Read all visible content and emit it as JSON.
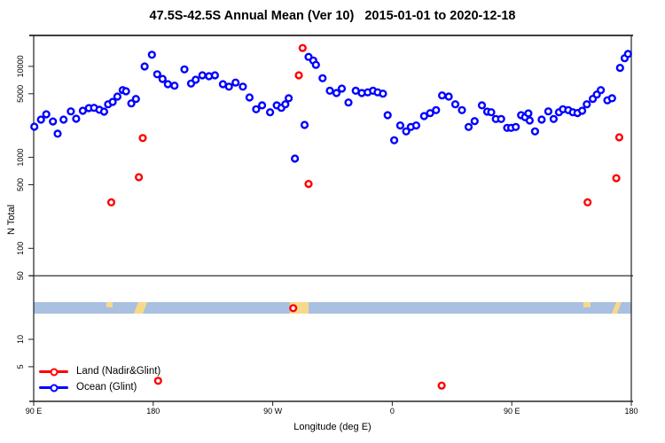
{
  "title": "47.5S-42.5S Annual Mean (Ver 10)   2015-01-01 to 2020-12-18",
  "legend": {
    "items": [
      {
        "label": "Land (Nadir&Glint)",
        "color": "#ff0000"
      },
      {
        "label": "Ocean (Glint)",
        "color": "#0000ff"
      }
    ]
  },
  "chart_data": {
    "type": "scatter",
    "title": "47.5S-42.5S Annual Mean (Ver 10)   2015-01-01 to 2020-12-18",
    "xlabel": "Longitude (deg E)",
    "ylabel": "N Total",
    "x_scale": "linear",
    "y_scale": "log10",
    "xlim": [
      90,
      540
    ],
    "ylim": [
      2,
      22000
    ],
    "grid": false,
    "legend_position": "bottom-left",
    "x_ticks": [
      {
        "value": 90,
        "label": "90 E"
      },
      {
        "value": 180,
        "label": "180"
      },
      {
        "value": 270,
        "label": "90 W"
      },
      {
        "value": 360,
        "label": "0"
      },
      {
        "value": 450,
        "label": "90 E"
      },
      {
        "value": 540,
        "label": "180"
      }
    ],
    "y_ticks": [
      {
        "value": 10000,
        "label": "10000"
      },
      {
        "value": 5000,
        "label": "5000"
      },
      {
        "value": 1000,
        "label": "1000"
      },
      {
        "value": 500,
        "label": "500"
      },
      {
        "value": 100,
        "label": "100"
      },
      {
        "value": 50,
        "label": "50"
      },
      {
        "value": 10,
        "label": "10"
      },
      {
        "value": 5,
        "label": "5"
      }
    ],
    "reference_line_y": 50,
    "series": [
      {
        "name": "Land (Nadir&Glint)",
        "color": "#ff0000",
        "marker": "open-circle",
        "points": [
          [
            148.4,
            320
          ],
          [
            169.2,
            605
          ],
          [
            172.1,
            1630
          ],
          [
            183.7,
            3.5
          ],
          [
            285.4,
            22
          ],
          [
            289.6,
            7970
          ],
          [
            292.5,
            15900
          ],
          [
            297.0,
            510
          ],
          [
            397.2,
            3.1
          ],
          [
            507.1,
            320
          ],
          [
            528.7,
            590
          ],
          [
            530.9,
            1660
          ]
        ]
      },
      {
        "name": "Ocean (Glint)",
        "color": "#0000ff",
        "marker": "open-circle",
        "points": [
          [
            90.5,
            2170
          ],
          [
            95.5,
            2600
          ],
          [
            99.5,
            2970
          ],
          [
            104.5,
            2480
          ],
          [
            108,
            1820
          ],
          [
            112.5,
            2600
          ],
          [
            118,
            3200
          ],
          [
            122,
            2660
          ],
          [
            127,
            3250
          ],
          [
            131.5,
            3480
          ],
          [
            135.5,
            3500
          ],
          [
            139.5,
            3330
          ],
          [
            143,
            3180
          ],
          [
            146,
            3830
          ],
          [
            149.5,
            4070
          ],
          [
            153,
            4660
          ],
          [
            157,
            5480
          ],
          [
            159.5,
            5320
          ],
          [
            163.5,
            3920
          ],
          [
            167,
            4380
          ],
          [
            173.5,
            9980
          ],
          [
            179,
            13400
          ],
          [
            183,
            8200
          ],
          [
            187,
            7280
          ],
          [
            191,
            6370
          ],
          [
            196,
            6130
          ],
          [
            203.5,
            9260
          ],
          [
            208.5,
            6470
          ],
          [
            212,
            7130
          ],
          [
            217,
            7970
          ],
          [
            222,
            7790
          ],
          [
            226.5,
            7970
          ],
          [
            232.5,
            6370
          ],
          [
            237,
            5990
          ],
          [
            242,
            6630
          ],
          [
            247.5,
            5990
          ],
          [
            252.5,
            4550
          ],
          [
            257.5,
            3380
          ],
          [
            262,
            3730
          ],
          [
            268,
            3130
          ],
          [
            273,
            3730
          ],
          [
            276.5,
            3500
          ],
          [
            279.5,
            3830
          ],
          [
            282,
            4460
          ],
          [
            286.7,
            970
          ],
          [
            294,
            2270
          ],
          [
            297,
            12700
          ],
          [
            300.5,
            11600
          ],
          [
            302.5,
            10400
          ],
          [
            307.5,
            7400
          ],
          [
            313,
            5400
          ],
          [
            318,
            5090
          ],
          [
            322,
            5690
          ],
          [
            327,
            4010
          ],
          [
            332.5,
            5400
          ],
          [
            337,
            5090
          ],
          [
            341.5,
            5180
          ],
          [
            345.5,
            5400
          ],
          [
            349,
            5180
          ],
          [
            353,
            5010
          ],
          [
            356.5,
            2910
          ],
          [
            361.5,
            1540
          ],
          [
            366,
            2240
          ],
          [
            370.5,
            1930
          ],
          [
            374,
            2160
          ],
          [
            378,
            2240
          ],
          [
            384,
            2840
          ],
          [
            388.5,
            3060
          ],
          [
            393,
            3300
          ],
          [
            397.5,
            4790
          ],
          [
            402.5,
            4660
          ],
          [
            407.5,
            3830
          ],
          [
            412.5,
            3300
          ],
          [
            417.5,
            2160
          ],
          [
            422,
            2500
          ],
          [
            427.5,
            3730
          ],
          [
            431.5,
            3180
          ],
          [
            434.5,
            3130
          ],
          [
            438,
            2640
          ],
          [
            442,
            2640
          ],
          [
            446.5,
            2110
          ],
          [
            449.5,
            2110
          ],
          [
            453,
            2160
          ],
          [
            457,
            2910
          ],
          [
            460,
            2760
          ],
          [
            462.5,
            3040
          ],
          [
            463.5,
            2540
          ],
          [
            467.5,
            1930
          ],
          [
            472.5,
            2600
          ],
          [
            477.5,
            3200
          ],
          [
            481.5,
            2640
          ],
          [
            485.5,
            3130
          ],
          [
            488.5,
            3380
          ],
          [
            492.5,
            3300
          ],
          [
            496,
            3130
          ],
          [
            499.5,
            3070
          ],
          [
            503,
            3250
          ],
          [
            506.5,
            3830
          ],
          [
            511,
            4390
          ],
          [
            514,
            4900
          ],
          [
            517,
            5480
          ],
          [
            522,
            4240
          ],
          [
            525.5,
            4460
          ],
          [
            531.5,
            9620
          ],
          [
            535,
            12300
          ],
          [
            537.5,
            13700
          ]
        ]
      }
    ],
    "map_strip": {
      "ocean_color": "#a9c0e0",
      "land_color": "#f7d98b",
      "land_patches": [
        {
          "range": [
            144.7,
            149.4
          ],
          "shape": "sliver"
        },
        {
          "range": [
            165.4,
            175.5
          ],
          "shape": "diagonal"
        },
        {
          "range": [
            283.0,
            297.0
          ],
          "shape": "full"
        },
        {
          "range": [
            503.9,
            509.3
          ],
          "shape": "sliver"
        },
        {
          "range": [
            525.3,
            532.6
          ],
          "shape": "diagonal"
        }
      ]
    }
  }
}
